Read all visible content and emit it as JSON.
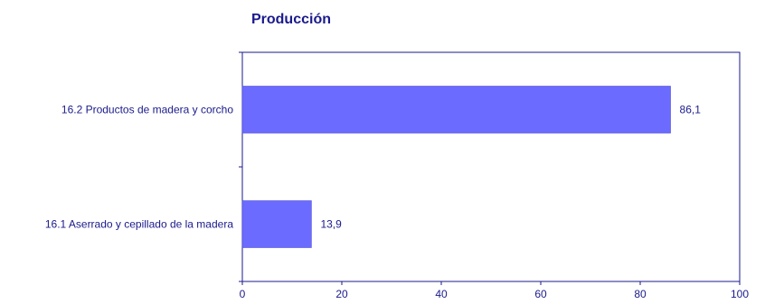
{
  "chart_data": {
    "type": "bar",
    "orientation": "horizontal",
    "title": "Producción",
    "categories": [
      "16.2 Productos de madera y corcho",
      "16.1 Aserrado y cepillado de la madera"
    ],
    "values": [
      86.1,
      13.9
    ],
    "value_labels": [
      "86,1",
      "13,9"
    ],
    "xlim": [
      0,
      100
    ],
    "x_ticks": [
      0,
      20,
      40,
      60,
      80,
      100
    ],
    "x_tick_labels": [
      "0",
      "20",
      "40",
      "60",
      "80",
      "100"
    ],
    "grid": false,
    "legend": "none",
    "colors": {
      "bar": "#6b6bff",
      "bar_edge": "#4a4ad0",
      "text": "#1a1a8c",
      "axis": "#1a1a8c"
    }
  }
}
